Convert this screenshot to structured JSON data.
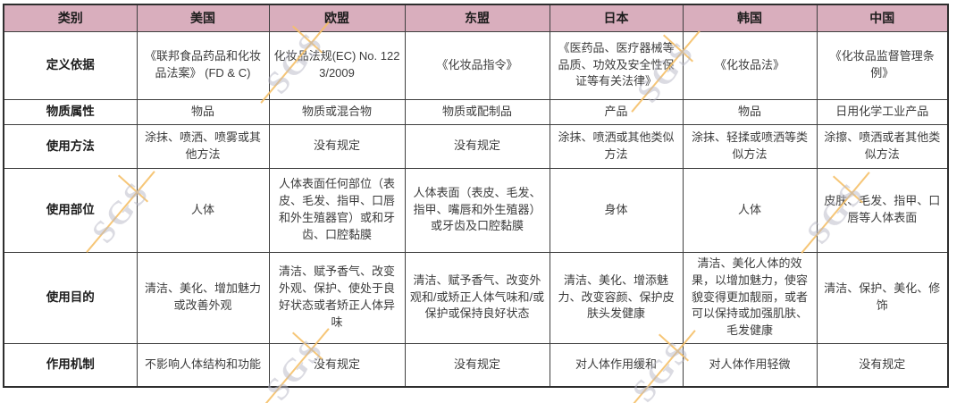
{
  "table": {
    "headers": [
      "类别",
      "美国",
      "欧盟",
      "东盟",
      "日本",
      "韩国",
      "中国"
    ],
    "rows": [
      {
        "label": "定义依据",
        "cells": [
          "《联邦食品药品和化妆品法案》 (FD & C)",
          "化妆品法规(EC) No. 1223/2009",
          "《化妆品指令》",
          "《医药品、医疗器械等品质、功效及安全性保证等有关法律》",
          "《化妆品法》",
          "《化妆品监督管理条例》"
        ]
      },
      {
        "label": "物质属性",
        "cells": [
          "物品",
          "物质或混合物",
          "物质或配制品",
          "产品",
          "物品",
          "日用化学工业产品"
        ]
      },
      {
        "label": "使用方法",
        "cells": [
          "涂抹、喷洒、喷雾或其他方法",
          "没有规定",
          "没有规定",
          "涂抹、喷洒或其他类似方法",
          "涂抹、轻揉或喷洒等类似方法",
          "涂擦、喷洒或者其他类似方法"
        ]
      },
      {
        "label": "使用部位",
        "cells": [
          "人体",
          "人体表面任何部位（表皮、毛发、指甲、口唇和外生殖器官）或和牙齿、口腔黏膜",
          "人体表面（表皮、毛发、指甲、嘴唇和外生殖器）或牙齿及口腔黏膜",
          "身体",
          "人体",
          "皮肤、毛发、指甲、口唇等人体表面"
        ]
      },
      {
        "label": "使用目的",
        "cells": [
          "清洁、美化、增加魅力或改善外观",
          "清洁、赋予香气、改变外观、保护、使处于良好状态或者矫正人体异味",
          "清洁、赋予香气、改变外观和/或矫正人体气味和/或保护或保持良好状态",
          "清洁、美化、增添魅力、改变容颜、保护皮肤头发健康",
          "清洁、美化人体的效果，以增加魅力，使容貌变得更加靓丽，或者可以保持或加强肌肤、毛发健康",
          "清洁、保护、美化、修饰"
        ]
      },
      {
        "label": "作用机制",
        "cells": [
          "不影响人体结构和功能",
          "没有规定",
          "没有规定",
          "对人体作用缓和",
          "对人体作用轻微",
          "没有规定"
        ]
      }
    ]
  },
  "watermark": {
    "text": "SGS"
  },
  "colors": {
    "header_bg": "#d9aebd",
    "border": "#3f3f3f",
    "text": "#3c3c3c",
    "watermark_text": "#b8b8c6",
    "watermark_line": "#f5c068"
  }
}
